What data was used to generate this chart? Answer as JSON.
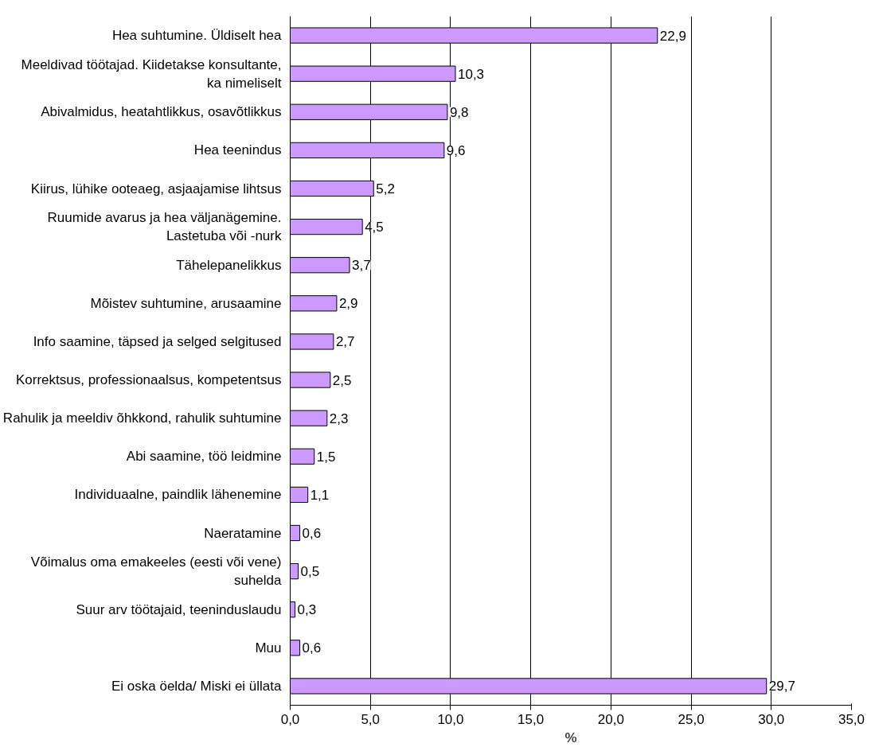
{
  "chart_data": {
    "type": "bar",
    "orientation": "horizontal",
    "xlabel": "%",
    "categories": [
      "Hea suhtumine. Üldiselt hea",
      "Meeldivad töötajad. Kiidetakse konsultante,\nka nimeliselt",
      "Abivalmidus, heatahtlikkus, osavõtlikkus",
      "Hea teenindus",
      "Kiirus, lühike ooteaeg, asjaajamise lihtsus",
      "Ruumide avarus ja hea väljanägemine.\nLastetuba või -nurk",
      "Tähelepanelikkus",
      "Mõistev suhtumine, arusaamine",
      "Info saamine, täpsed ja selged selgitused",
      "Korrektsus, professionaalsus, kompetentsus",
      "Rahulik ja meeldiv õhkkond, rahulik suhtumine",
      "Abi saamine, töö leidmine",
      "Individuaalne, paindlik lähenemine",
      "Naeratamine",
      "Võimalus oma emakeeles (eesti või vene)\nsuhelda",
      "Suur arv töötajaid, teeninduslaudu",
      "Muu",
      "Ei oska öelda/ Miski ei üllata"
    ],
    "values": [
      22.9,
      10.3,
      9.8,
      9.6,
      5.2,
      4.5,
      3.7,
      2.9,
      2.7,
      2.5,
      2.3,
      1.5,
      1.1,
      0.6,
      0.5,
      0.3,
      0.6,
      29.7
    ],
    "value_labels": [
      "22,9",
      "10,3",
      "9,8",
      "9,6",
      "5,2",
      "4,5",
      "3,7",
      "2,9",
      "2,7",
      "2,5",
      "2,3",
      "1,5",
      "1,1",
      "0,6",
      "0,5",
      "0,3",
      "0,6",
      "29,7"
    ],
    "color": "#cc99ff",
    "xlim": [
      0,
      35
    ],
    "xticks": [
      {
        "value": 0,
        "label": "0,0"
      },
      {
        "value": 5,
        "label": "5,0"
      },
      {
        "value": 10,
        "label": "10,0"
      },
      {
        "value": 15,
        "label": "15,0"
      },
      {
        "value": 20,
        "label": "20,0"
      },
      {
        "value": 25,
        "label": "25,0"
      },
      {
        "value": 30,
        "label": "30,0"
      },
      {
        "value": 35,
        "label": "35,0"
      }
    ],
    "grid": "x"
  }
}
